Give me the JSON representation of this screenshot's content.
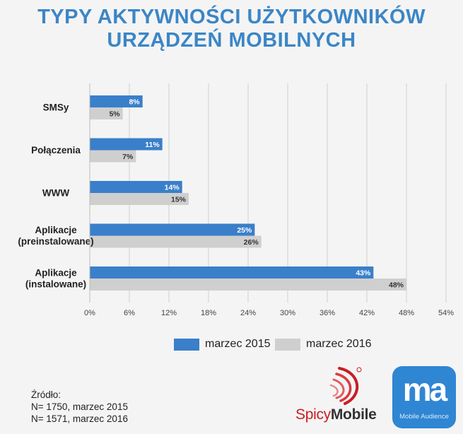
{
  "title": [
    "TYPY AKTYWNOŚCI UŻYTKOWNIKÓW",
    "URZĄDZEŃ MOBILNYCH"
  ],
  "chart_data": {
    "type": "bar",
    "orientation": "horizontal",
    "categories": [
      [
        "SMSy"
      ],
      [
        "Połączenia"
      ],
      [
        "WWW"
      ],
      [
        "Aplikacje",
        "(preinstalowane)"
      ],
      [
        "Aplikacje",
        "(instalowane)"
      ]
    ],
    "series": [
      {
        "name": "marzec 2015",
        "color": "#3a7fca",
        "values": [
          8,
          11,
          14,
          25,
          43
        ],
        "labels": [
          "8%",
          "11%",
          "14%",
          "25%",
          "43%"
        ]
      },
      {
        "name": "marzec 2016",
        "color": "#cfcfcf",
        "values": [
          5,
          7,
          15,
          26,
          48
        ],
        "labels": [
          "5%",
          "7%",
          "15%",
          "26%",
          "48%"
        ]
      }
    ],
    "xlim": [
      0,
      54
    ],
    "xticks": [
      0,
      6,
      12,
      18,
      24,
      30,
      36,
      42,
      48,
      54
    ],
    "xtick_labels": [
      "0%",
      "6%",
      "12%",
      "18%",
      "24%",
      "30%",
      "36%",
      "42%",
      "48%",
      "54%"
    ],
    "grid": true,
    "legend": "bottom"
  },
  "source": {
    "label": "Źródło:",
    "lines": [
      "N= 1750, marzec 2015",
      "N= 1571, marzec 2016"
    ]
  },
  "logos": {
    "spicy_part1": "Spicy",
    "spicy_part2": "Mobile",
    "ma_mark": "ma",
    "ma_sub": "Mobile Audience"
  }
}
